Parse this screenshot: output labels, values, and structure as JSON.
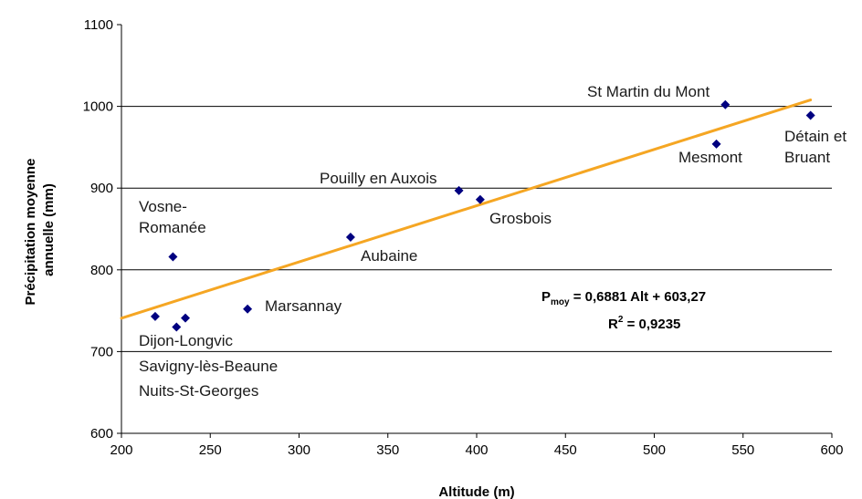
{
  "chart_data": {
    "type": "scatter",
    "title": "",
    "xlabel": "Altitude (m)",
    "ylabel_lines": [
      "Précipitation moyenne",
      "annuelle (mm)"
    ],
    "xlim": [
      200,
      600
    ],
    "ylim": [
      600,
      1100
    ],
    "x_ticks": [
      200,
      250,
      300,
      350,
      400,
      450,
      500,
      550,
      600
    ],
    "y_ticks": [
      600,
      700,
      800,
      900,
      1000,
      1100
    ],
    "y_gridlines": [
      700,
      800,
      900,
      1000
    ],
    "marker_color": "#000080",
    "trend_color": "#f5a623",
    "points": [
      {
        "x": 219,
        "y": 743
      },
      {
        "x": 229,
        "y": 816
      },
      {
        "x": 231,
        "y": 730
      },
      {
        "x": 236,
        "y": 741
      },
      {
        "x": 271,
        "y": 752
      },
      {
        "x": 329,
        "y": 840
      },
      {
        "x": 390,
        "y": 897
      },
      {
        "x": 402,
        "y": 886
      },
      {
        "x": 535,
        "y": 954
      },
      {
        "x": 540,
        "y": 1002
      },
      {
        "x": 588,
        "y": 989
      }
    ],
    "labels": [
      {
        "lines": [
          "Vosne-",
          "Romanée"
        ]
      },
      {
        "lines": [
          "Marsannay"
        ]
      },
      {
        "lines": [
          "Dijon-Longvic"
        ]
      },
      {
        "lines": [
          "Savigny-lès-Beaune"
        ]
      },
      {
        "lines": [
          "Nuits-St-Georges"
        ]
      },
      {
        "lines": [
          "Aubaine"
        ]
      },
      {
        "lines": [
          "Pouilly en Auxois"
        ]
      },
      {
        "lines": [
          "Grosbois"
        ]
      },
      {
        "lines": [
          "Mesmont"
        ]
      },
      {
        "lines": [
          "St Martin du Mont"
        ]
      },
      {
        "lines": [
          "Détain et",
          "Bruant"
        ]
      }
    ],
    "trendline": {
      "slope": 0.6881,
      "intercept": 603.27,
      "x_range": [
        200,
        588
      ]
    },
    "equation": {
      "lhs": "P",
      "lhs_sub": "moy",
      "rhs": " = 0,6881 Alt + 603,27"
    },
    "r2": {
      "lhs": "R",
      "sup": "2",
      "rhs": " = 0,9235"
    }
  }
}
